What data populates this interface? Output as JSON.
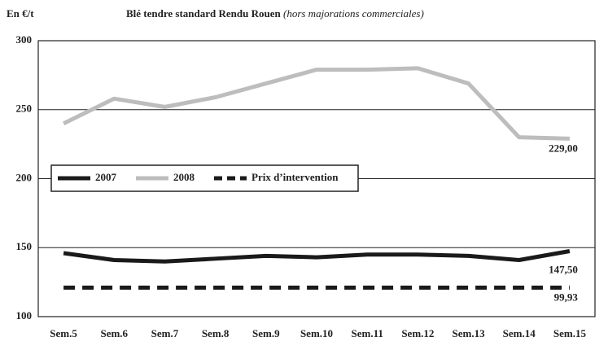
{
  "chart_data": {
    "type": "line",
    "title": "Blé tendre standard Rendu Rouen",
    "subtitle": "(hors majorations commerciales)",
    "y_label": "En €/t",
    "categories": [
      "Sem.5",
      "Sem.6",
      "Sem.7",
      "Sem.8",
      "Sem.9",
      "Sem.10",
      "Sem.11",
      "Sem.12",
      "Sem.13",
      "Sem.14",
      "Sem.15"
    ],
    "series": [
      {
        "name": "2007",
        "color": "#1a1a1a",
        "dashed": false,
        "values": [
          146,
          141,
          140,
          142,
          144,
          143,
          145,
          145,
          144,
          141,
          147.5
        ],
        "value_labels": [
          null,
          null,
          null,
          null,
          null,
          null,
          null,
          null,
          null,
          null,
          "147,50"
        ]
      },
      {
        "name": "2008",
        "color": "#bdbdbd",
        "dashed": false,
        "values": [
          240,
          258,
          252,
          259,
          269,
          279,
          279,
          280,
          269,
          230,
          229
        ],
        "value_labels": [
          null,
          null,
          null,
          null,
          null,
          null,
          null,
          null,
          null,
          null,
          "229,00"
        ]
      },
      {
        "name": "Prix d’intervention",
        "color": "#1a1a1a",
        "dashed": true,
        "values": [
          121,
          121,
          121,
          121,
          121,
          121,
          121,
          121,
          121,
          121,
          121
        ]
      }
    ],
    "annotations": [
      "99,93"
    ],
    "ylim": [
      100,
      300
    ],
    "yticks": [
      100,
      150,
      200,
      250,
      300
    ],
    "grid": true,
    "legend": "left"
  }
}
